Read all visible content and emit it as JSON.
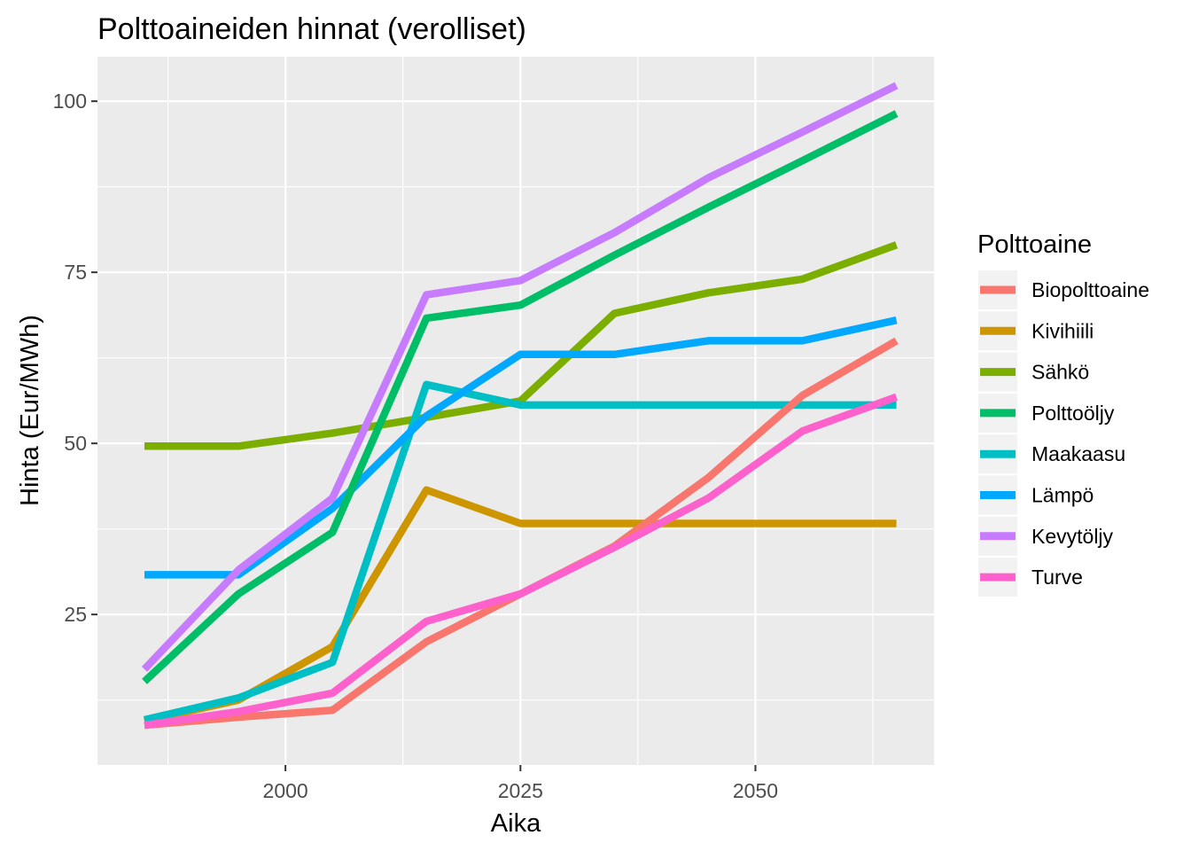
{
  "chart_data": {
    "type": "line",
    "title": "Polttoaineiden hinnat (verolliset)",
    "xlabel": "Aika",
    "ylabel": "Hinta (Eur/MWh)",
    "xlim": [
      1980,
      2069
    ],
    "ylim": [
      3,
      106.5
    ],
    "x_ticks": [
      {
        "value": 2000,
        "label": "2000"
      },
      {
        "value": 2025,
        "label": "2025"
      },
      {
        "value": 2050,
        "label": "2050"
      }
    ],
    "x_minor": [
      1987.5,
      2012.5,
      2037.5,
      2062.5
    ],
    "y_ticks": [
      {
        "value": 25,
        "label": "25"
      },
      {
        "value": 50,
        "label": "50"
      },
      {
        "value": 75,
        "label": "75"
      },
      {
        "value": 100,
        "label": "100"
      }
    ],
    "y_minor": [
      12.5,
      37.5,
      62.5,
      87.5
    ],
    "grid": true,
    "legend": {
      "title": "Polttoaine",
      "placement": "right"
    },
    "x": [
      1985,
      1995,
      2005,
      2015,
      2025,
      2035,
      2045,
      2055,
      2065
    ],
    "series": [
      {
        "name": "Sähkö",
        "color": "#7CAE00",
        "values": [
          49.6,
          49.6,
          51.5,
          53.8,
          56.2,
          69.0,
          72.0,
          74.0,
          79.0
        ]
      },
      {
        "name": "Kivihiili",
        "color": "#CD9600",
        "values": [
          9.4,
          12.5,
          20.3,
          43.2,
          38.3,
          38.3,
          38.3,
          38.3,
          38.3
        ]
      },
      {
        "name": "Maakaasu",
        "color": "#00BFC4",
        "values": [
          9.6,
          12.8,
          18.0,
          58.6,
          55.6,
          55.6,
          55.6,
          55.6,
          55.6
        ]
      },
      {
        "name": "Lämpö",
        "color": "#00A9FF",
        "values": [
          30.8,
          30.8,
          40.5,
          54.0,
          63.0,
          63.0,
          65.0,
          65.0,
          68.0
        ]
      },
      {
        "name": "Biopolttoaine",
        "color": "#F8766D",
        "values": [
          8.8,
          10.0,
          11.0,
          21.0,
          28.0,
          35.0,
          45.0,
          57.0,
          65.0
        ]
      },
      {
        "name": "Turve",
        "color": "#FF61CC",
        "values": [
          8.8,
          10.8,
          13.5,
          24.0,
          28.0,
          34.8,
          42.0,
          51.8,
          56.8
        ]
      },
      {
        "name": "Polttoöljy",
        "color": "#00BE67",
        "values": [
          15.2,
          28.0,
          37.0,
          68.3,
          70.2,
          77.5,
          84.5,
          91.3,
          98.2
        ]
      },
      {
        "name": "Kevytöljy",
        "color": "#C77CFF",
        "values": [
          17.0,
          31.5,
          42.0,
          71.7,
          73.8,
          80.8,
          88.8,
          95.5,
          102.3
        ]
      }
    ],
    "legend_order": [
      "Biopolttoaine",
      "Kivihiili",
      "Sähkö",
      "Polttoöljy",
      "Maakaasu",
      "Lämpö",
      "Kevytöljy",
      "Turve"
    ]
  }
}
